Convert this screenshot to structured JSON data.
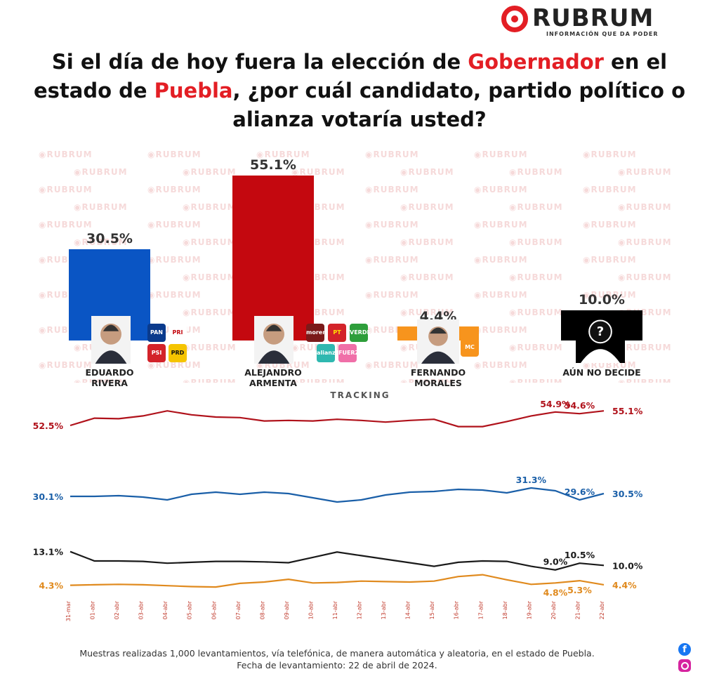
{
  "brand": {
    "name": "RUBRUM",
    "tagline": "INFORMACIÓN QUE DA PODER",
    "color": "#e31e24"
  },
  "title": {
    "part1": "Si el día de hoy fuera la elección de ",
    "highlight1": "Gobernador",
    "part2": " en el estado de ",
    "highlight2": "Puebla",
    "part3": ", ¿por cuál candidato, partido político o alianza votaría usted?"
  },
  "watermark": "RUBRUM",
  "candidates": [
    {
      "line1": "EDUARDO",
      "line2": "RIVERA",
      "value": 30.5,
      "label": "30.5%",
      "color": "#0a55c4",
      "parties": [
        "PAN",
        "PRI",
        "PSI",
        "PRD"
      ],
      "icon": "candidate-photo"
    },
    {
      "line1": "ALEJANDRO",
      "line2": "ARMENTA",
      "value": 55.1,
      "label": "55.1%",
      "color": "#c4080f",
      "parties": [
        "morena",
        "PT",
        "VERDE",
        "alianza",
        "FUERZA MÉXICO"
      ],
      "icon": "candidate-photo"
    },
    {
      "line1": "FERNANDO",
      "line2": "MORALES",
      "value": 4.4,
      "label": "4.4%",
      "color": "#f7941d",
      "parties": [
        "MC"
      ],
      "icon": "candidate-photo"
    },
    {
      "line1": "AÚN NO DECIDE",
      "line2": "",
      "value": 10.0,
      "label": "10.0%",
      "color": "#000000",
      "parties": [],
      "icon": "unknown-person-icon"
    }
  ],
  "tracking_label": "TRACKING",
  "chart_data": [
    {
      "type": "bar",
      "categories": [
        "EDUARDO RIVERA",
        "ALEJANDRO ARMENTA",
        "FERNANDO MORALES",
        "AÚN NO DECIDE"
      ],
      "values": [
        30.5,
        55.1,
        4.4,
        10.0
      ],
      "ylim": [
        0,
        60
      ]
    },
    {
      "type": "line",
      "x": [
        "31-mar",
        "01-abr",
        "02-abr",
        "03-abr",
        "04-abr",
        "05-abr",
        "06-abr",
        "07-abr",
        "08-abr",
        "09-abr",
        "10-abr",
        "11-abr",
        "12-abr",
        "13-abr",
        "14-abr",
        "15-abr",
        "16-abr",
        "17-abr",
        "18-abr",
        "19-abr",
        "20-abr",
        "21-abr",
        "22-abr"
      ],
      "series": [
        {
          "color": "#b0121b",
          "values": [
            52.5,
            53.8,
            53.7,
            54.2,
            55.1,
            54.4,
            54.0,
            53.9,
            53.3,
            53.4,
            53.3,
            53.6,
            53.4,
            53.1,
            53.4,
            53.6,
            52.3,
            52.3,
            53.2,
            54.2,
            54.9,
            54.6,
            55.1
          ],
          "start_label": "52.5%",
          "end_label": "55.1%",
          "point_labels": [
            {
              "i": 20,
              "text": "54.9%"
            },
            {
              "i": 21,
              "text": "54.6%"
            }
          ]
        },
        {
          "color": "#1a5fa8",
          "values": [
            30.1,
            30.1,
            30.2,
            30.0,
            29.6,
            30.4,
            30.7,
            30.4,
            30.7,
            30.5,
            29.9,
            29.3,
            29.6,
            30.3,
            30.7,
            30.8,
            31.1,
            31.0,
            30.6,
            31.3,
            30.9,
            29.6,
            30.5
          ],
          "start_label": "30.1%",
          "end_label": "30.5%",
          "point_labels": [
            {
              "i": 19,
              "text": "31.3%"
            },
            {
              "i": 21,
              "text": "29.6%"
            }
          ]
        },
        {
          "color": "#1a1a1a",
          "values": [
            13.1,
            11.0,
            11.0,
            10.9,
            10.5,
            10.7,
            10.9,
            10.9,
            10.8,
            10.6,
            11.8,
            13.0,
            12.2,
            11.4,
            10.6,
            9.8,
            10.7,
            11.0,
            10.9,
            9.8,
            9.0,
            10.5,
            10.0
          ],
          "start_label": "13.1%",
          "end_label": "10.0%",
          "point_labels": [
            {
              "i": 20,
              "text": "9.0%"
            },
            {
              "i": 21,
              "text": "10.5%"
            }
          ]
        },
        {
          "color": "#e08a1e",
          "values": [
            4.3,
            4.4,
            4.5,
            4.4,
            4.2,
            4.0,
            3.9,
            4.7,
            5.0,
            5.6,
            4.8,
            4.9,
            5.2,
            5.1,
            5.0,
            5.2,
            6.2,
            6.6,
            5.5,
            4.5,
            4.8,
            5.3,
            4.4
          ],
          "start_label": "4.3%",
          "end_label": "4.4%",
          "point_labels": [
            {
              "i": 20,
              "text": "4.8%"
            },
            {
              "i": 21,
              "text": "5.3%"
            }
          ]
        }
      ]
    }
  ],
  "footer": {
    "line1": "Muestras realizadas 1,000 levantamientos, vía telefónica, de manera automática y aleatoria, en el estado de Puebla.",
    "line2": "Fecha de levantamiento: 22 de abril de 2024."
  },
  "social": {
    "facebook": "facebook-icon",
    "instagram": "instagram-icon"
  }
}
